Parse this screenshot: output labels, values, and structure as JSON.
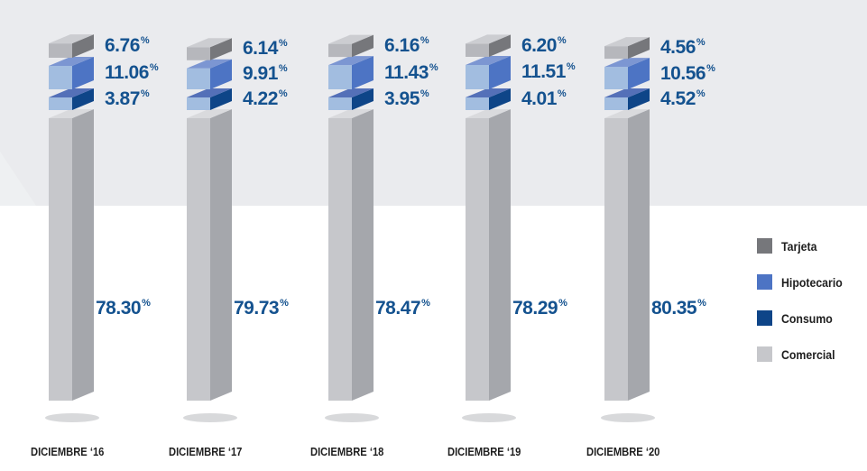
{
  "chart_data": {
    "type": "bar",
    "stacked": true,
    "categories": [
      "DICIEMBRE ‘16",
      "DICIEMBRE ‘17",
      "DICIEMBRE ‘18",
      "DICIEMBRE ‘19",
      "DICIEMBRE ‘20"
    ],
    "series": [
      {
        "name": "Comercial",
        "values": [
          78.3,
          79.73,
          78.47,
          78.29,
          80.35
        ],
        "labels": [
          "78.30",
          "79.73",
          "78.47",
          "78.29",
          "80.35"
        ],
        "color_front": "#c6c7cb",
        "color_side": "#a5a7ac",
        "color_top": "#d9dadd"
      },
      {
        "name": "Consumo",
        "values": [
          3.87,
          4.22,
          3.95,
          4.01,
          4.52
        ],
        "labels": [
          "3.87",
          "4.22",
          "3.95",
          "4.01",
          "4.52"
        ],
        "color_front": "#a2bde0",
        "color_side": "#0e4588",
        "color_top": "#5470b8"
      },
      {
        "name": "Hipotecario",
        "values": [
          11.06,
          9.91,
          11.43,
          11.51,
          10.56
        ],
        "labels": [
          "11.06",
          "9.91",
          "11.43",
          "11.51",
          "10.56"
        ],
        "color_front": "#a2bde0",
        "color_side": "#4d74c4",
        "color_top": "#7c96d2"
      },
      {
        "name": "Tarjeta",
        "values": [
          6.76,
          6.14,
          6.16,
          6.2,
          4.56
        ],
        "labels": [
          "6.76",
          "6.14",
          "6.16",
          "6.20",
          "4.56"
        ],
        "color_front": "#b6b7bc",
        "color_side": "#76777b",
        "color_top": "#cccdd1"
      }
    ],
    "unit": "%",
    "legend": {
      "position": "right",
      "items": [
        {
          "name": "Tarjeta",
          "color": "#76777b"
        },
        {
          "name": "Hipotecario",
          "color": "#4d74c4"
        },
        {
          "name": "Consumo",
          "color": "#0e4588"
        },
        {
          "name": "Comercial",
          "color": "#c6c7cb"
        }
      ]
    },
    "grid": false,
    "colors": {
      "label": "#14528f",
      "background_band": "#eeeff1"
    }
  }
}
